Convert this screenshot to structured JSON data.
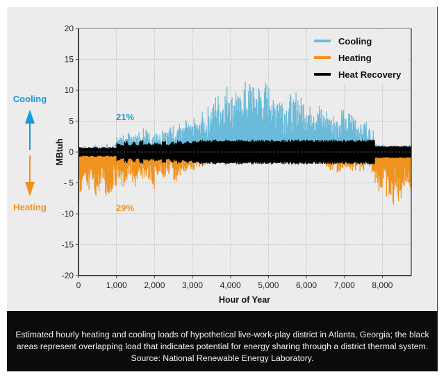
{
  "chart_data": {
    "type": "bar",
    "title": "",
    "xlabel": "Hour of Year",
    "ylabel": "MBtuh",
    "xlim": [
      0,
      8760
    ],
    "ylim": [
      -20,
      20
    ],
    "xticks": [
      0,
      1000,
      2000,
      3000,
      4000,
      5000,
      6000,
      7000,
      8000
    ],
    "xtick_labels": [
      "0",
      "1,000",
      "2,000",
      "3,000",
      "4,000",
      "5,000",
      "6,000",
      "7,000",
      "8,000"
    ],
    "yticks": [
      20,
      15,
      10,
      5,
      0,
      -5,
      -10,
      -15,
      -20
    ],
    "ytick_labels": [
      "20",
      "15",
      "10",
      "5",
      "0",
      "- 5",
      "-10",
      "-15",
      "-20"
    ],
    "grid": true,
    "legend_position": "top-right",
    "x_step_hours": 100,
    "series": [
      {
        "name": "Cooling",
        "color": "#6bbad9",
        "values": [
          0.8,
          1,
          0.6,
          0.9,
          1.2,
          0.8,
          1.1,
          1.3,
          0.9,
          1.5,
          2.5,
          3,
          2.2,
          3.5,
          2.8,
          3.2,
          2.5,
          4,
          3.3,
          2.6,
          3.8,
          3,
          4.2,
          3.5,
          4.5,
          3.8,
          4.8,
          4,
          5.2,
          4.3,
          5.5,
          4.8,
          6.5,
          5.5,
          7.5,
          8,
          9.5,
          8.5,
          10.2,
          11,
          9.5,
          10.8,
          9,
          11.5,
          10.2,
          12,
          10.5,
          11.2,
          10,
          11.5,
          10.8,
          8.5,
          10,
          9.2,
          8,
          9.5,
          8.5,
          10,
          9,
          8.8,
          7.5,
          8.5,
          6.8,
          7.8,
          6.5,
          7,
          5.8,
          6.5,
          5.5,
          7.5,
          5.5,
          6.5,
          6.2,
          5,
          4.5,
          5.2,
          4,
          3.5,
          1.5,
          1,
          1.2,
          0.8,
          1,
          1.1,
          0.9,
          1.2,
          1,
          1.3
        ]
      },
      {
        "name": "Heating",
        "color": "#f0921f",
        "values": [
          -8.5,
          -6,
          -7,
          -5.5,
          -7.2,
          -6.5,
          -5,
          -7.5,
          -6.8,
          -5.5,
          -4.5,
          -6,
          -5.2,
          -4,
          -5.8,
          -4.8,
          -5.2,
          -4.2,
          -4.5,
          -6.2,
          -4,
          -3.5,
          -4.2,
          -3.8,
          -3,
          -5,
          -4,
          -3.2,
          -3.5,
          -2.8,
          -3,
          -2.5,
          -2.8,
          -2.2,
          -2,
          -1.8,
          -1.8,
          -1.8,
          -1.8,
          -1.8,
          -1.8,
          -1.8,
          -1.8,
          -1.8,
          -1.8,
          -1.8,
          -1.8,
          -1.8,
          -1.8,
          -1.8,
          -1.8,
          -1.8,
          -1.8,
          -1.8,
          -1.8,
          -1.8,
          -1.8,
          -1.8,
          -1.8,
          -1.8,
          -1.8,
          -1.8,
          -1.8,
          -1.8,
          -1.8,
          -2.5,
          -3,
          -2.2,
          -3.5,
          -2.8,
          -2.5,
          -3,
          -3.2,
          -2.6,
          -3.4,
          -3,
          -2.5,
          -3.5,
          -5,
          -6.5,
          -5.5,
          -7.5,
          -8.8,
          -7,
          -8.2,
          -6,
          -5.2,
          -6.5
        ]
      },
      {
        "name": "Heat Recovery",
        "color": "#000000",
        "values": [
          0.8,
          0.7,
          0.8,
          0.7,
          0.8,
          0.7,
          0.8,
          0.7,
          0.8,
          0.8,
          1.5,
          1.2,
          1.8,
          1.3,
          1.6,
          1.2,
          1.9,
          1.4,
          1.5,
          1.3,
          1.6,
          1.4,
          1.8,
          1.3,
          1.7,
          1.5,
          1.9,
          1.6,
          1.8,
          1.7,
          1.9,
          1.8,
          2,
          2,
          2,
          2,
          2,
          2,
          2,
          2,
          2,
          2,
          2,
          2,
          2,
          2,
          2,
          2,
          2,
          2,
          2,
          2,
          2,
          2,
          2,
          2,
          2,
          2,
          2,
          2,
          2,
          2,
          2,
          2,
          2,
          2,
          2,
          2,
          2,
          2,
          2,
          2,
          2,
          2,
          2,
          2,
          2,
          2,
          1,
          1,
          1,
          1,
          1,
          1,
          1,
          1,
          1,
          1
        ]
      }
    ],
    "annotations": {
      "cooling_share": "21%",
      "heating_share": "29%",
      "up_label": "Cooling",
      "down_label": "Heating"
    }
  },
  "caption": "Estimated hourly heating and cooling loads of hypothetical live-work-play district in Atlanta, Georgia; the black areas represent overlapping load that indicates potential for energy sharing through a district thermal system. Source: National Renewable Energy Laboratory."
}
